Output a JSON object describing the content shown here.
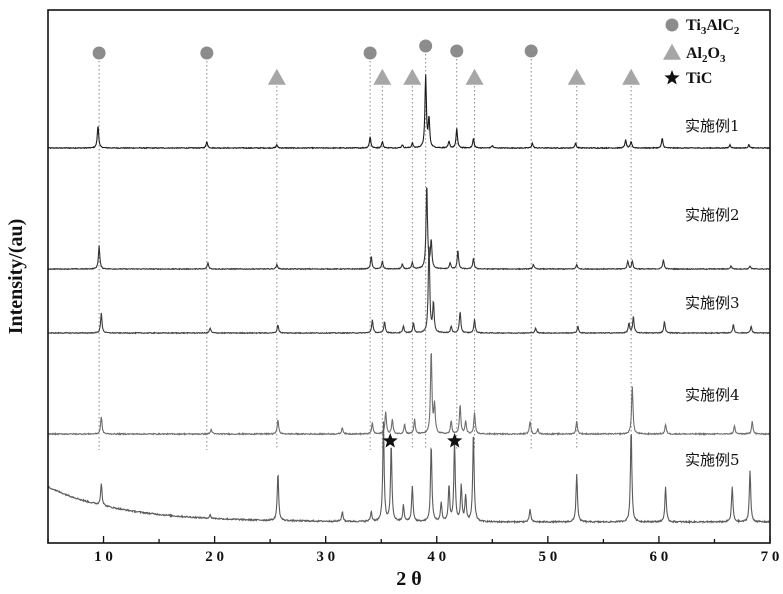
{
  "chart_data": {
    "type": "line",
    "xlabel": "2 θ",
    "ylabel": "Intensity/(au)",
    "xlim": [
      5,
      70
    ],
    "xticks": [
      10,
      20,
      30,
      40,
      50,
      60,
      70
    ],
    "xtick_labels": [
      "1 0",
      "2 0",
      "3 0",
      "4 0",
      "5 0",
      "6 0",
      "7 0"
    ],
    "grid": false,
    "legend_position": "top-right",
    "legend": [
      {
        "name": "Ti3AlC2",
        "base": "Ti",
        "s1": "3",
        "mid": "AlC",
        "s2": "2",
        "marker": "circle",
        "color": "#8c8c8c"
      },
      {
        "name": "Al2O3",
        "base": "Al",
        "s1": "2",
        "mid": "O",
        "s2": "3",
        "marker": "triangle",
        "color": "#a6a6a6"
      },
      {
        "name": "TiC",
        "base": "TiC",
        "s1": "",
        "mid": "",
        "s2": "",
        "marker": "star",
        "color": "#111111"
      }
    ],
    "phase_markers": {
      "Ti3AlC2": [
        9.6,
        19.3,
        34.0,
        39.0,
        41.8,
        48.5
      ],
      "Al2O3": [
        25.6,
        35.1,
        37.8,
        43.4,
        52.6,
        57.5
      ],
      "TiC": [
        35.9,
        41.7
      ]
    },
    "series": [
      {
        "name": "实施例1",
        "color": "#1a1a1a",
        "noise": 0.25,
        "slope": 0.0,
        "peaks": [
          [
            9.5,
            14
          ],
          [
            19.3,
            4
          ],
          [
            25.6,
            2
          ],
          [
            34.0,
            7
          ],
          [
            35.1,
            4
          ],
          [
            36.9,
            2
          ],
          [
            37.8,
            3
          ],
          [
            39.0,
            45
          ],
          [
            39.3,
            18
          ],
          [
            41.1,
            4
          ],
          [
            41.8,
            12
          ],
          [
            43.3,
            6
          ],
          [
            45.0,
            1.5
          ],
          [
            48.6,
            3
          ],
          [
            52.5,
            3
          ],
          [
            57.0,
            5
          ],
          [
            57.5,
            4
          ],
          [
            60.3,
            6
          ],
          [
            66.4,
            2
          ],
          [
            68.1,
            2
          ]
        ]
      },
      {
        "name": "实施例2",
        "color": "#333333",
        "noise": 0.25,
        "slope": 0.0,
        "peaks": [
          [
            9.6,
            15
          ],
          [
            19.4,
            4
          ],
          [
            25.6,
            3
          ],
          [
            34.1,
            8
          ],
          [
            35.1,
            5
          ],
          [
            36.9,
            3
          ],
          [
            37.8,
            4
          ],
          [
            39.1,
            55
          ],
          [
            39.5,
            18
          ],
          [
            41.2,
            4
          ],
          [
            41.9,
            12
          ],
          [
            43.3,
            7
          ],
          [
            48.7,
            3
          ],
          [
            52.6,
            3
          ],
          [
            57.2,
            5
          ],
          [
            57.6,
            5
          ],
          [
            60.4,
            6
          ],
          [
            66.5,
            2
          ],
          [
            68.2,
            2
          ]
        ]
      },
      {
        "name": "实施例3",
        "color": "#3b3b3b",
        "noise": 0.25,
        "slope": 0.0,
        "peaks": [
          [
            9.8,
            12
          ],
          [
            19.6,
            3
          ],
          [
            25.7,
            5
          ],
          [
            34.2,
            8
          ],
          [
            35.3,
            7
          ],
          [
            37.0,
            4
          ],
          [
            37.9,
            6
          ],
          [
            39.3,
            55
          ],
          [
            39.7,
            18
          ],
          [
            41.3,
            4
          ],
          [
            42.1,
            13
          ],
          [
            43.4,
            8
          ],
          [
            48.9,
            3
          ],
          [
            52.7,
            4
          ],
          [
            57.3,
            6
          ],
          [
            57.7,
            10
          ],
          [
            60.5,
            7
          ],
          [
            66.7,
            5
          ],
          [
            68.3,
            4
          ]
        ]
      },
      {
        "name": "实施例4",
        "color": "#6e6e6e",
        "noise": 0.35,
        "slope": 0.0,
        "peaks": [
          [
            9.8,
            11
          ],
          [
            19.7,
            3
          ],
          [
            25.7,
            9
          ],
          [
            31.5,
            4
          ],
          [
            34.2,
            7
          ],
          [
            35.4,
            14
          ],
          [
            36.0,
            9
          ],
          [
            37.1,
            6
          ],
          [
            38.0,
            9
          ],
          [
            39.5,
            52
          ],
          [
            39.8,
            18
          ],
          [
            41.3,
            8
          ],
          [
            42.1,
            18
          ],
          [
            42.6,
            8
          ],
          [
            43.4,
            13
          ],
          [
            48.4,
            8
          ],
          [
            49.1,
            3
          ],
          [
            52.6,
            8
          ],
          [
            57.6,
            30
          ],
          [
            60.6,
            6
          ],
          [
            66.8,
            5
          ],
          [
            68.4,
            8
          ]
        ]
      },
      {
        "name": "实施例5",
        "color": "#5a5a5a",
        "noise": 0.45,
        "slope": 22,
        "peaks": [
          [
            9.8,
            14
          ],
          [
            19.6,
            2
          ],
          [
            25.7,
            30
          ],
          [
            31.5,
            6
          ],
          [
            34.1,
            6
          ],
          [
            35.2,
            62
          ],
          [
            35.9,
            48
          ],
          [
            37.0,
            10
          ],
          [
            37.8,
            22
          ],
          [
            39.5,
            48
          ],
          [
            40.4,
            12
          ],
          [
            41.1,
            22
          ],
          [
            41.6,
            50
          ],
          [
            42.2,
            22
          ],
          [
            42.6,
            16
          ],
          [
            43.3,
            56
          ],
          [
            48.4,
            8
          ],
          [
            52.6,
            30
          ],
          [
            57.5,
            58
          ],
          [
            60.6,
            22
          ],
          [
            66.6,
            22
          ],
          [
            68.2,
            32
          ]
        ]
      }
    ]
  }
}
